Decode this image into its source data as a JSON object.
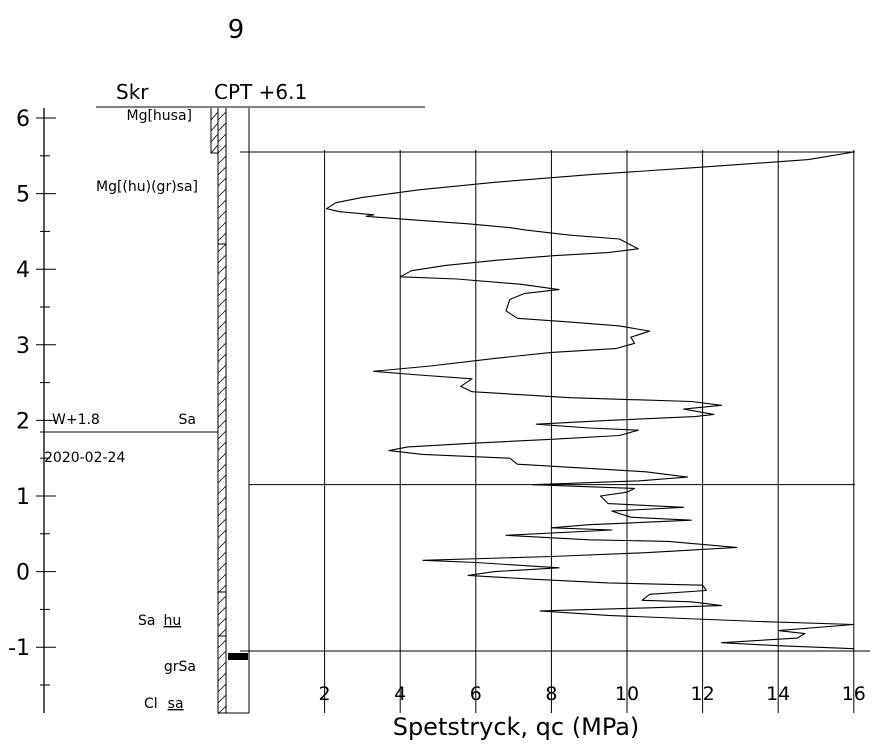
{
  "page": {
    "number": "9"
  },
  "header": {
    "method": "Skr",
    "sounding": "CPT +6.1"
  },
  "y_axis": {
    "tick_labels": [
      "6",
      "5",
      "4",
      "3",
      "2",
      "1",
      "0",
      "-1"
    ]
  },
  "x_axis": {
    "title": "Spetstryck, qc (MPa)",
    "tick_labels": [
      "2",
      "4",
      "6",
      "8",
      "10",
      "12",
      "14",
      "16"
    ]
  },
  "groundwater": {
    "level": "W+1.8",
    "date": "2020-02-24"
  },
  "soil_layers": [
    {
      "label": "Mg[husa]",
      "underlined": ""
    },
    {
      "label": "Mg[(hu)(gr)sa]",
      "underlined": ""
    },
    {
      "label": "Sa",
      "underlined": ""
    },
    {
      "label": "Sa",
      "underlined": "hu"
    },
    {
      "label": "grSa",
      "underlined": ""
    },
    {
      "label": "Cl",
      "underlined": "sa"
    }
  ],
  "chart_data": {
    "type": "line",
    "x_label": "Spetstryck, qc (MPa)",
    "y_label": "",
    "xlim": [
      0,
      16
    ],
    "ylim": [
      -1.8,
      6.2
    ],
    "x_ticks": [
      2,
      4,
      6,
      8,
      10,
      12,
      14,
      16
    ],
    "y_ticks": [
      6,
      5,
      4,
      3,
      2,
      1,
      0,
      -1
    ],
    "grid": "vertical",
    "boundary_levels": [
      5.55,
      1.15,
      -1.05
    ],
    "series": [
      {
        "points": [
          [
            0.2,
            5.55
          ],
          [
            16.0,
            5.55
          ],
          [
            14.8,
            5.45
          ],
          [
            12.0,
            5.35
          ],
          [
            9.0,
            5.25
          ],
          [
            6.5,
            5.15
          ],
          [
            4.5,
            5.05
          ],
          [
            3.0,
            4.95
          ],
          [
            2.3,
            4.88
          ],
          [
            2.05,
            4.8
          ],
          [
            2.4,
            4.76
          ],
          [
            3.3,
            4.72
          ],
          [
            3.1,
            4.7
          ],
          [
            4.4,
            4.65
          ],
          [
            5.8,
            4.6
          ],
          [
            6.9,
            4.55
          ],
          [
            7.3,
            4.52
          ],
          [
            8.5,
            4.45
          ],
          [
            9.8,
            4.4
          ],
          [
            10.1,
            4.32
          ],
          [
            10.3,
            4.27
          ],
          [
            9.5,
            4.22
          ],
          [
            8.1,
            4.18
          ],
          [
            6.6,
            4.12
          ],
          [
            5.2,
            4.05
          ],
          [
            4.3,
            3.98
          ],
          [
            4.0,
            3.9
          ],
          [
            5.5,
            3.87
          ],
          [
            7.2,
            3.8
          ],
          [
            8.2,
            3.73
          ],
          [
            7.3,
            3.68
          ],
          [
            6.9,
            3.6
          ],
          [
            6.8,
            3.45
          ],
          [
            7.1,
            3.35
          ],
          [
            8.5,
            3.3
          ],
          [
            9.8,
            3.25
          ],
          [
            10.6,
            3.18
          ],
          [
            10.1,
            3.1
          ],
          [
            10.2,
            3.02
          ],
          [
            9.7,
            2.95
          ],
          [
            8.0,
            2.9
          ],
          [
            6.5,
            2.82
          ],
          [
            4.8,
            2.72
          ],
          [
            3.3,
            2.65
          ],
          [
            4.5,
            2.6
          ],
          [
            5.9,
            2.55
          ],
          [
            5.6,
            2.45
          ],
          [
            5.9,
            2.38
          ],
          [
            8.5,
            2.3
          ],
          [
            11.7,
            2.25
          ],
          [
            12.5,
            2.2
          ],
          [
            11.5,
            2.15
          ],
          [
            12.3,
            2.08
          ],
          [
            11.8,
            2.05
          ],
          [
            9.5,
            2.0
          ],
          [
            7.6,
            1.95
          ],
          [
            9.0,
            1.9
          ],
          [
            10.3,
            1.87
          ],
          [
            9.8,
            1.8
          ],
          [
            8.0,
            1.75
          ],
          [
            6.0,
            1.7
          ],
          [
            4.2,
            1.65
          ],
          [
            3.7,
            1.6
          ],
          [
            4.6,
            1.55
          ],
          [
            6.9,
            1.5
          ],
          [
            7.1,
            1.42
          ],
          [
            8.5,
            1.38
          ],
          [
            10.5,
            1.32
          ],
          [
            11.6,
            1.25
          ],
          [
            10.3,
            1.2
          ],
          [
            7.5,
            1.15
          ],
          [
            10.2,
            1.1
          ],
          [
            10.0,
            1.05
          ],
          [
            9.3,
            1.0
          ],
          [
            9.5,
            0.9
          ],
          [
            11.5,
            0.85
          ],
          [
            9.6,
            0.8
          ],
          [
            10.1,
            0.72
          ],
          [
            11.7,
            0.68
          ],
          [
            9.0,
            0.62
          ],
          [
            8.0,
            0.58
          ],
          [
            9.6,
            0.55
          ],
          [
            6.8,
            0.48
          ],
          [
            9.0,
            0.42
          ],
          [
            11.1,
            0.4
          ],
          [
            12.9,
            0.32
          ],
          [
            10.5,
            0.25
          ],
          [
            8.0,
            0.2
          ],
          [
            4.6,
            0.15
          ],
          [
            6.0,
            0.12
          ],
          [
            8.2,
            0.05
          ],
          [
            6.5,
            0.0
          ],
          [
            5.8,
            -0.05
          ],
          [
            7.5,
            -0.1
          ],
          [
            9.5,
            -0.15
          ],
          [
            12.0,
            -0.18
          ],
          [
            12.1,
            -0.25
          ],
          [
            10.6,
            -0.3
          ],
          [
            10.4,
            -0.38
          ],
          [
            11.7,
            -0.4
          ],
          [
            12.5,
            -0.45
          ],
          [
            10.5,
            -0.48
          ],
          [
            7.7,
            -0.52
          ],
          [
            9.5,
            -0.58
          ],
          [
            11.5,
            -0.62
          ],
          [
            13.5,
            -0.66
          ],
          [
            16.0,
            -0.7
          ],
          [
            14.0,
            -0.78
          ],
          [
            14.7,
            -0.82
          ],
          [
            14.5,
            -0.88
          ],
          [
            12.5,
            -0.94
          ],
          [
            14.0,
            -0.98
          ],
          [
            16.0,
            -1.02
          ]
        ]
      }
    ]
  }
}
